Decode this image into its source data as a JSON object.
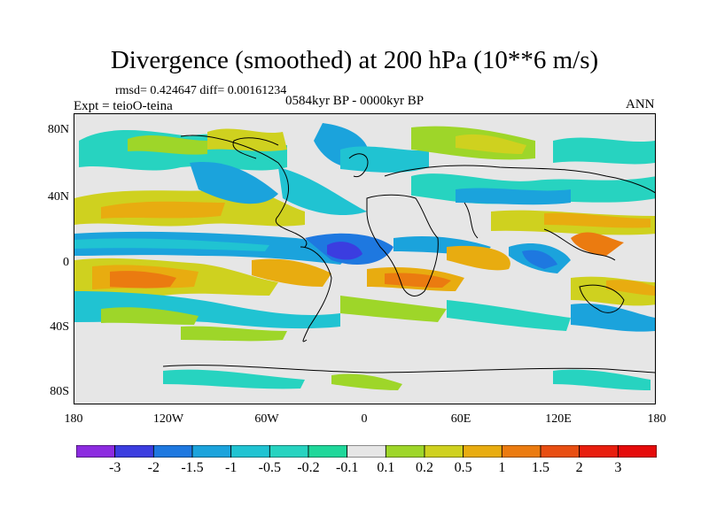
{
  "title": "Divergence (smoothed) at 200 hPa (10**6 m/s)",
  "stats": "rmsd= 0.424647 diff= 0.00161234",
  "experiment": "Expt = teioO-teina",
  "period": "0584kyr BP - 0000kyr BP",
  "season": "ANN",
  "y_axis_labels": [
    "80N",
    "40N",
    "0",
    "40S",
    "80S"
  ],
  "x_axis_labels": [
    "180",
    "120W",
    "60W",
    "0",
    "60E",
    "120E",
    "180"
  ],
  "colorbar": {
    "boundary_labels": [
      "-3",
      "-2",
      "-1.5",
      "-1",
      "-0.5",
      "-0.2",
      "-0.1",
      "0.1",
      "0.2",
      "0.5",
      "1",
      "1.5",
      "2",
      "3"
    ],
    "colors": [
      "#8c2be0",
      "#3b3de0",
      "#1e78e0",
      "#1ba3dc",
      "#20c3d2",
      "#27d3c0",
      "#1fd79a",
      "#e6e6e6",
      "#9ed629",
      "#cfd11f",
      "#e8ac10",
      "#eb7b10",
      "#e84e12",
      "#e81e0e",
      "#e50a0a"
    ]
  }
}
